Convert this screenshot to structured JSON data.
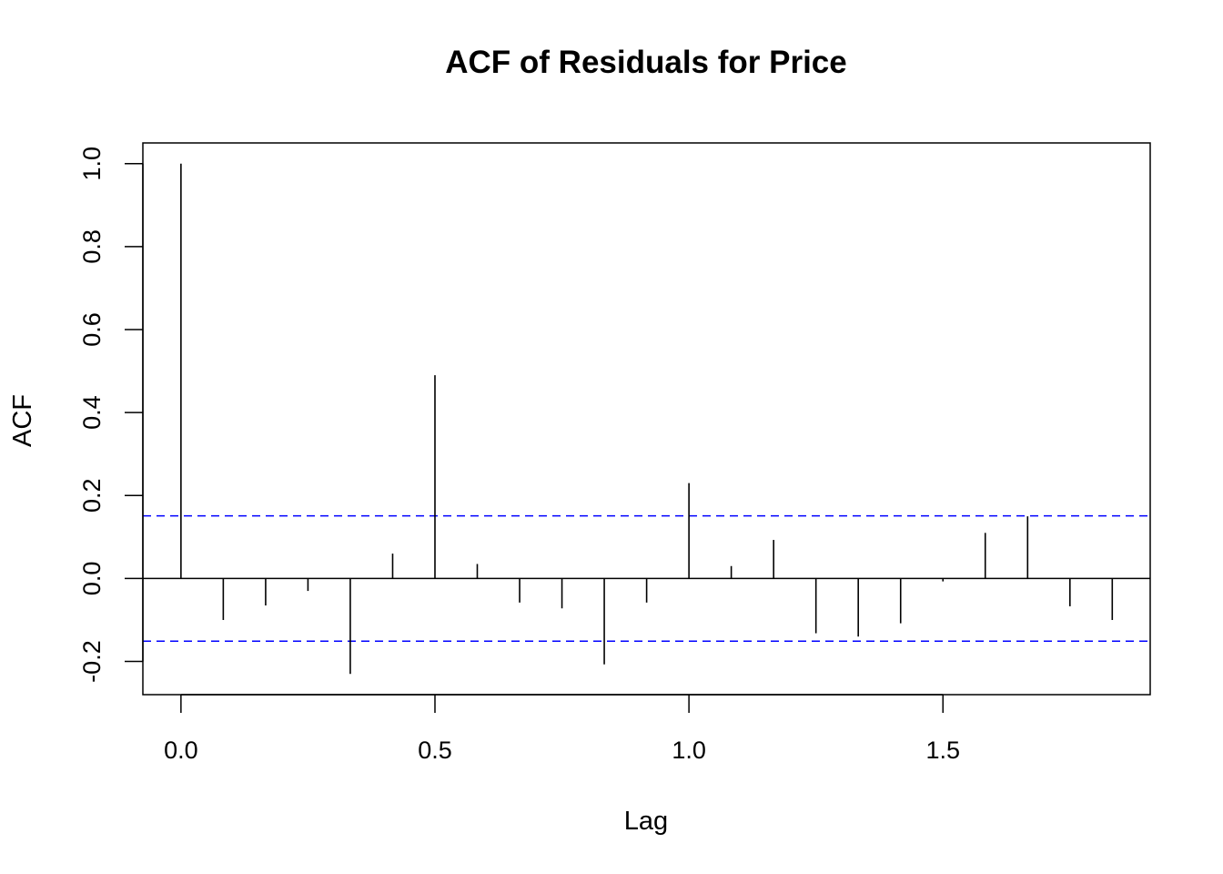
{
  "chart_data": {
    "type": "bar",
    "title": "ACF of Residuals for Price",
    "xlabel": "Lag",
    "ylabel": "ACF",
    "xlim": [
      -0.075,
      1.908
    ],
    "ylim": [
      -0.28,
      1.05
    ],
    "x_ticks": [
      0.0,
      0.5,
      1.0,
      1.5
    ],
    "x_tick_labels": [
      "0.0",
      "0.5",
      "1.0",
      "1.5"
    ],
    "y_ticks": [
      -0.2,
      0.0,
      0.2,
      0.4,
      0.6,
      0.8,
      1.0
    ],
    "y_tick_labels": [
      "-0.2",
      "0.0",
      "0.2",
      "0.4",
      "0.6",
      "0.8",
      "1.0"
    ],
    "confidence_bound": 0.151,
    "confidence_color": "#0000ff",
    "spike_color": "#000000",
    "grid": false,
    "lags": [
      0.0,
      0.0833,
      0.1667,
      0.25,
      0.3333,
      0.4167,
      0.5,
      0.5833,
      0.6667,
      0.75,
      0.8333,
      0.9167,
      1.0,
      1.0833,
      1.1667,
      1.25,
      1.3333,
      1.4167,
      1.5,
      1.5833,
      1.6667,
      1.75,
      1.8333
    ],
    "values": [
      1.0,
      -0.1,
      -0.065,
      -0.03,
      -0.23,
      0.06,
      0.49,
      0.035,
      -0.058,
      -0.072,
      -0.207,
      -0.058,
      0.23,
      0.03,
      0.093,
      -0.132,
      -0.14,
      -0.108,
      -0.007,
      0.11,
      0.15,
      -0.067,
      -0.1
    ]
  }
}
